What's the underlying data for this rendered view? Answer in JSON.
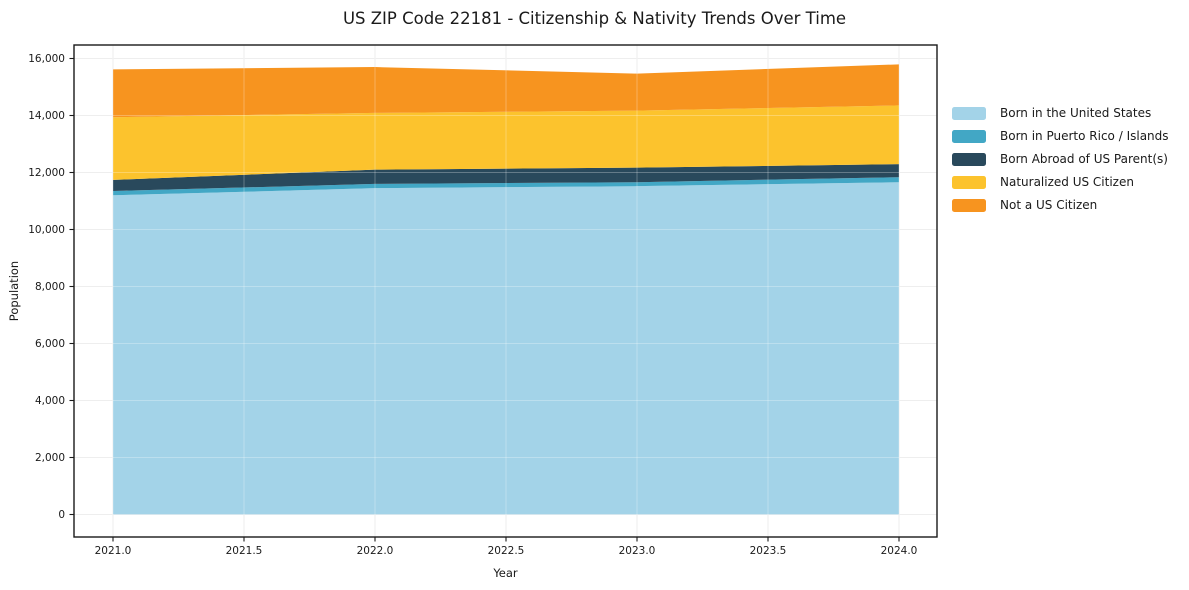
{
  "page": {
    "background": "#ffffff",
    "text_color": "#1a1a1a",
    "grid_color": "#e8e8e8",
    "frame_color": "#1a1a1a"
  },
  "chart_data": {
    "type": "area",
    "stacked": true,
    "title": "US ZIP Code 22181 - Citizenship & Nativity Trends Over Time",
    "xlabel": "Year",
    "ylabel": "Population",
    "x": [
      2021,
      2022,
      2023,
      2024
    ],
    "series": [
      {
        "name": "Born in the United States",
        "color": "#a3d3e8",
        "values": [
          11200,
          11450,
          11520,
          11660
        ]
      },
      {
        "name": "Born in Puerto Rico / Islands",
        "color": "#42a7c5",
        "values": [
          150,
          150,
          140,
          175
        ]
      },
      {
        "name": "Born Abroad of US Parent(s)",
        "color": "#29495c",
        "values": [
          390,
          500,
          510,
          460
        ]
      },
      {
        "name": "Naturalized US Citizen",
        "color": "#fcc32d",
        "values": [
          2200,
          1990,
          2000,
          2060
        ]
      },
      {
        "name": "Not a US Citizen",
        "color": "#f7941f",
        "values": [
          1680,
          1610,
          1300,
          1440
        ]
      }
    ],
    "totals": [
      15620,
      15700,
      15470,
      15795
    ],
    "xticks": [
      2021.0,
      2021.5,
      2022.0,
      2022.5,
      2023.0,
      2023.5,
      2024.0
    ],
    "xtick_labels": [
      "2021.0",
      "2021.5",
      "2022.0",
      "2022.5",
      "2023.0",
      "2023.5",
      "2024.0"
    ],
    "yticks": [
      0,
      2000,
      4000,
      6000,
      8000,
      10000,
      12000,
      14000,
      16000
    ],
    "ytick_labels": [
      "0",
      "2,000",
      "4,000",
      "6,000",
      "8,000",
      "10,000",
      "12,000",
      "14,000",
      "16,000"
    ],
    "xlim": [
      2020.85,
      2024.15
    ],
    "ylim": [
      0,
      16470
    ],
    "grid": true,
    "legend_position": "right-outside"
  }
}
